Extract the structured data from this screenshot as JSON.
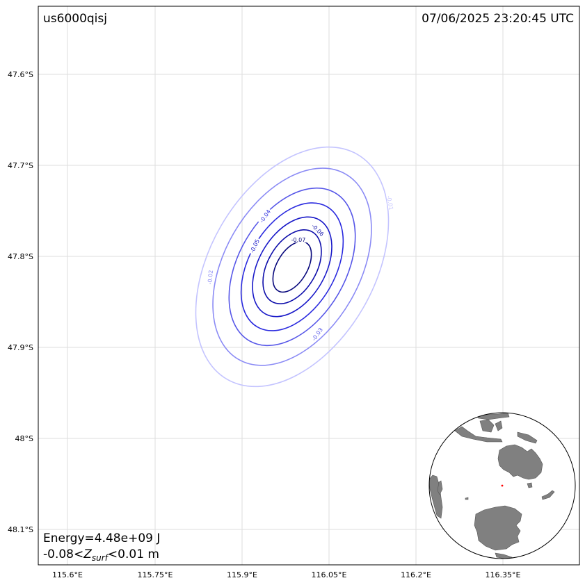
{
  "event_id": "us6000qisj",
  "timestamp": "07/06/2025 23:20:45 UTC",
  "energy_text": "Energy=4.48e+09 J",
  "zsurf": {
    "min": "-0.08",
    "var": "Z",
    "sub": "surf",
    "max": "<0.01 m",
    "sep": "<"
  },
  "axes": {
    "lon_ticks": [
      "115.6°E",
      "115.75°E",
      "115.9°E",
      "116.05°E",
      "116.2°E",
      "116.35°E"
    ],
    "lat_ticks": [
      "47.6°S",
      "47.7°S",
      "47.8°S",
      "47.9°S",
      "48°S",
      "48.1°S"
    ],
    "grid": true
  },
  "contours": [
    {
      "level": -0.01,
      "label": "-0.01",
      "color": "#c4c4ff"
    },
    {
      "level": -0.02,
      "label": "-0.02",
      "color": "#8b8bf5"
    },
    {
      "level": -0.03,
      "label": "-0.03",
      "color": "#5656e8"
    },
    {
      "level": -0.04,
      "label": "-0.04",
      "color": "#2a2adf"
    },
    {
      "level": -0.05,
      "label": "-0.05",
      "color": "#1818c8"
    },
    {
      "level": -0.06,
      "label": "-0.06",
      "color": "#0c0caa"
    },
    {
      "level": -0.07,
      "label": "-0.07",
      "color": "#07077c"
    }
  ],
  "colors": {
    "land": "#808080",
    "epicenter": "#ff0000",
    "grid": "#dddddd"
  },
  "inset": {
    "type": "globe",
    "marker": "epicenter"
  }
}
